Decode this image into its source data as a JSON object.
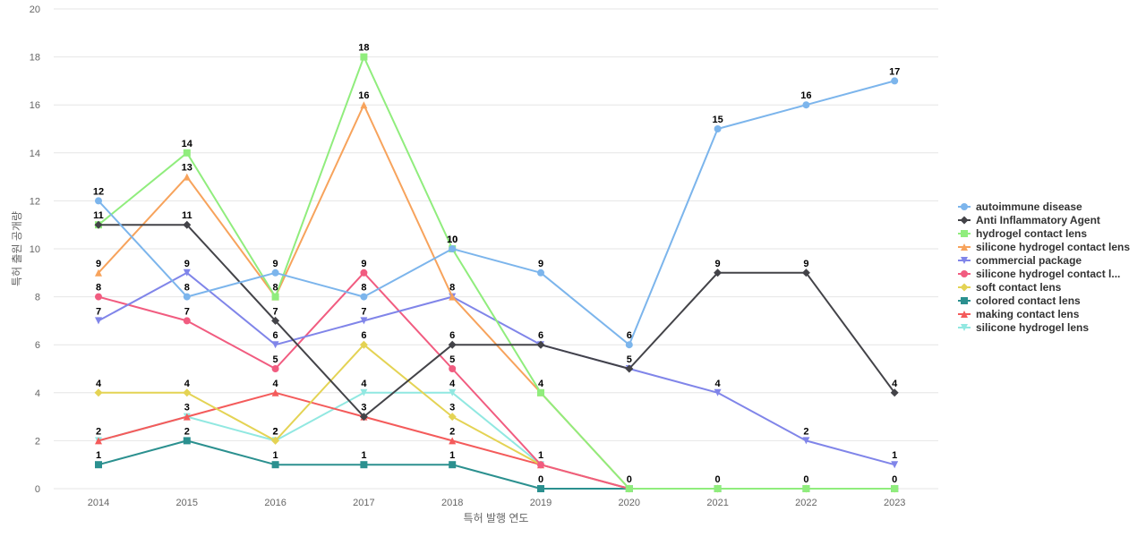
{
  "chart_data": {
    "type": "line",
    "title": "",
    "xlabel": "특허 발행 연도",
    "ylabel": "특허 출원 공개량",
    "x": [
      "2014",
      "2015",
      "2016",
      "2017",
      "2018",
      "2019",
      "2020",
      "2021",
      "2022",
      "2023"
    ],
    "ylim": [
      0,
      20
    ],
    "yticks": [
      0,
      2,
      4,
      6,
      8,
      10,
      12,
      14,
      16,
      18,
      20
    ],
    "grid": true,
    "legend_position": "right",
    "series": [
      {
        "name": "autoimmune disease",
        "color": "#7cb5ec",
        "marker": "circle",
        "values": [
          12,
          8,
          9,
          8,
          10,
          9,
          6,
          15,
          16,
          17
        ],
        "labels": [
          "12",
          "8",
          "9",
          "8",
          "10",
          "9",
          "6",
          "15",
          "16",
          "17"
        ]
      },
      {
        "name": "Anti Inflammatory Agent",
        "color": "#434348",
        "marker": "diamond",
        "values": [
          11,
          11,
          7,
          3,
          6,
          6,
          5,
          9,
          9,
          4
        ],
        "labels": [
          "11",
          "11",
          "7",
          "3",
          "6",
          "6",
          "5",
          "9",
          "9",
          "4"
        ]
      },
      {
        "name": "hydrogel contact lens",
        "color": "#90ed7d",
        "marker": "square",
        "values": [
          11,
          14,
          8,
          18,
          10,
          4,
          0,
          0,
          0,
          0
        ],
        "labels": [
          "",
          "14",
          "",
          "18",
          "10",
          "",
          "",
          "",
          "",
          ""
        ]
      },
      {
        "name": "silicone hydrogel contact lens",
        "color": "#f7a35c",
        "marker": "triangle",
        "values": [
          9,
          13,
          8,
          16,
          8,
          4,
          0,
          0,
          0,
          0
        ],
        "labels": [
          "9",
          "13",
          "8",
          "16",
          "",
          "4",
          "",
          "",
          "",
          ""
        ]
      },
      {
        "name": "commercial package",
        "color": "#8085e9",
        "marker": "triangle-down",
        "values": [
          7,
          9,
          6,
          7,
          8,
          6,
          5,
          4,
          2,
          1
        ],
        "labels": [
          "7",
          "9",
          "6",
          "7",
          "8",
          "",
          "",
          "4",
          "2",
          "1"
        ]
      },
      {
        "name": "silicone hydrogel contact l...",
        "color": "#f15c80",
        "marker": "circle",
        "values": [
          8,
          7,
          5,
          9,
          5,
          1,
          0,
          0,
          0,
          0
        ],
        "labels": [
          "8",
          "7",
          "5",
          "9",
          "5",
          "",
          "",
          "",
          "",
          ""
        ]
      },
      {
        "name": "soft contact lens",
        "color": "#e4d354",
        "marker": "diamond",
        "values": [
          4,
          4,
          2,
          6,
          3,
          1,
          0,
          0,
          0,
          0
        ],
        "labels": [
          "4",
          "4",
          "2",
          "6",
          "3",
          "",
          "",
          "",
          "",
          ""
        ]
      },
      {
        "name": "colored contact lens",
        "color": "#2b908f",
        "marker": "square",
        "values": [
          1,
          2,
          1,
          1,
          1,
          0,
          0,
          0,
          0,
          0
        ],
        "labels": [
          "1",
          "2",
          "1",
          "1",
          "1",
          "0",
          "0",
          "0",
          "0",
          "0"
        ]
      },
      {
        "name": "making contact lens",
        "color": "#f45b5b",
        "marker": "triangle",
        "values": [
          2,
          3,
          4,
          3,
          2,
          1,
          0,
          0,
          0,
          0
        ],
        "labels": [
          "",
          "",
          "4",
          "",
          "2",
          "",
          "",
          "",
          "",
          ""
        ]
      },
      {
        "name": "silicone hydrogel lens",
        "color": "#91e8e1",
        "marker": "triangle-down",
        "values": [
          2,
          3,
          2,
          4,
          4,
          1,
          0,
          0,
          0,
          0
        ],
        "labels": [
          "2",
          "3",
          "2",
          "4",
          "4",
          "1",
          "",
          "",
          "",
          ""
        ]
      }
    ]
  }
}
